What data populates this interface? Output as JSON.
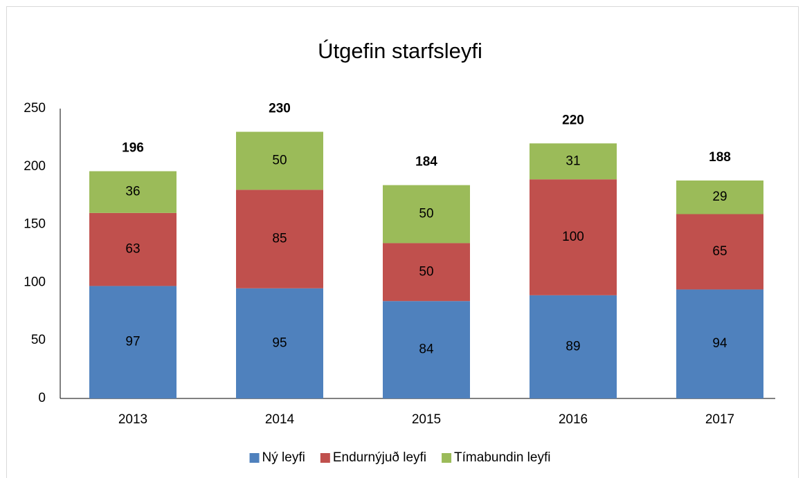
{
  "chart_data": {
    "type": "stacked_bar",
    "title": "Útgefin starfsleyfi",
    "categories": [
      "2013",
      "2014",
      "2015",
      "2016",
      "2017"
    ],
    "series": [
      {
        "name": "Ný leyfi",
        "color": "#4f81bd",
        "values": [
          97,
          95,
          84,
          89,
          94
        ]
      },
      {
        "name": "Endurnýjuð leyfi",
        "color": "#c0504d",
        "values": [
          63,
          85,
          50,
          100,
          65
        ]
      },
      {
        "name": "Tímabundin leyfi",
        "color": "#9bbb59",
        "values": [
          36,
          50,
          50,
          31,
          29
        ]
      }
    ],
    "totals": [
      196,
      230,
      184,
      220,
      188
    ],
    "ylim": [
      0,
      250
    ],
    "yticks": [
      0,
      50,
      100,
      150,
      200,
      250
    ],
    "grid": false,
    "legend": "bottom"
  }
}
